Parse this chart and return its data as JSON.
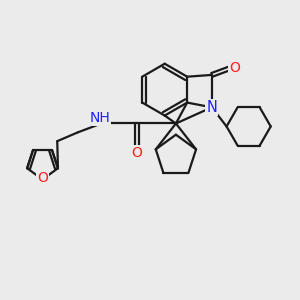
{
  "background_color": "#ebebeb",
  "bond_color": "#1a1a1a",
  "N_color": "#2020ff",
  "O_color": "#ff2020",
  "line_width": 1.6,
  "figsize": [
    3.0,
    3.0
  ],
  "dpi": 100,
  "xlim": [
    0,
    10
  ],
  "ylim": [
    0,
    10
  ]
}
